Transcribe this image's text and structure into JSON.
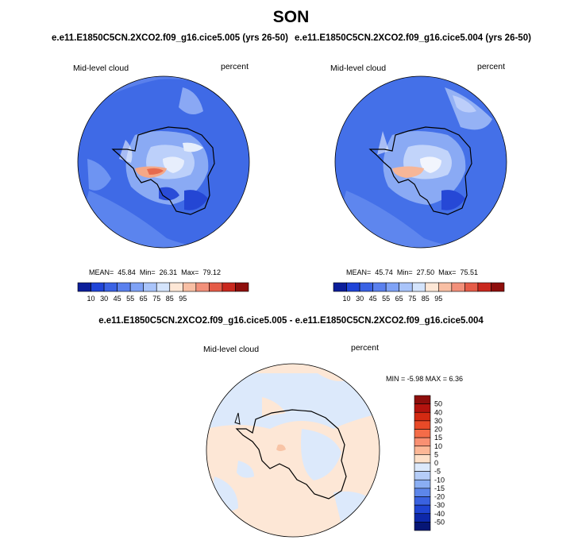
{
  "season": "SON",
  "panels": [
    {
      "title": "e.e11.E1850C5CN.2XCO2.f09_g16.cice5.005 (yrs 26-50)",
      "variable": "Mid-level cloud",
      "units": "percent",
      "stats": {
        "mean_label": "MEAN=",
        "mean": "45.84",
        "min_label": "Min=",
        "min": "26.31",
        "max_label": "Max=",
        "max": "79.12"
      }
    },
    {
      "title": "e.e11.E1850C5CN.2XCO2.f09_g16.cice5.004 (yrs 26-50)",
      "variable": "Mid-level cloud",
      "units": "percent",
      "stats": {
        "mean_label": "MEAN=",
        "mean": "45.74",
        "min_label": "Min=",
        "min": "27.50",
        "max_label": "Max=",
        "max": "75.51"
      }
    }
  ],
  "diff": {
    "title": "e.e11.E1850C5CN.2XCO2.f09_g16.cice5.005 - e.e11.E1850C5CN.2XCO2.f09_g16.cice5.004",
    "variable": "Mid-level cloud",
    "units": "percent",
    "minmax": "MIN =  -5.98 MAX =   6.36"
  },
  "colorbar_main": {
    "colors": [
      "#0c1e9a",
      "#1f44d8",
      "#3a62e4",
      "#5a80ee",
      "#7fa2f6",
      "#a9c4fa",
      "#d4e4fc",
      "#fde7d6",
      "#f8bfa4",
      "#f2907a",
      "#e55c48",
      "#c9281e",
      "#8e0e0c"
    ],
    "ticks": [
      "10",
      "30",
      "45",
      "55",
      "65",
      "75",
      "85",
      "95"
    ]
  },
  "colorbar_diff": {
    "colors": [
      "#8e0e0c",
      "#b3130e",
      "#d42a12",
      "#e94a28",
      "#f46c48",
      "#f99072",
      "#fcb796",
      "#fde0c8",
      "#dce9fb",
      "#b5cdf8",
      "#8aaef3",
      "#5d86ea",
      "#3a62e0",
      "#1f44d2",
      "#0d28aa",
      "#061676"
    ],
    "ticks": [
      "50",
      "40",
      "30",
      "20",
      "15",
      "10",
      "5",
      "0",
      "-5",
      "-10",
      "-15",
      "-20",
      "-30",
      "-40",
      "-50"
    ]
  }
}
